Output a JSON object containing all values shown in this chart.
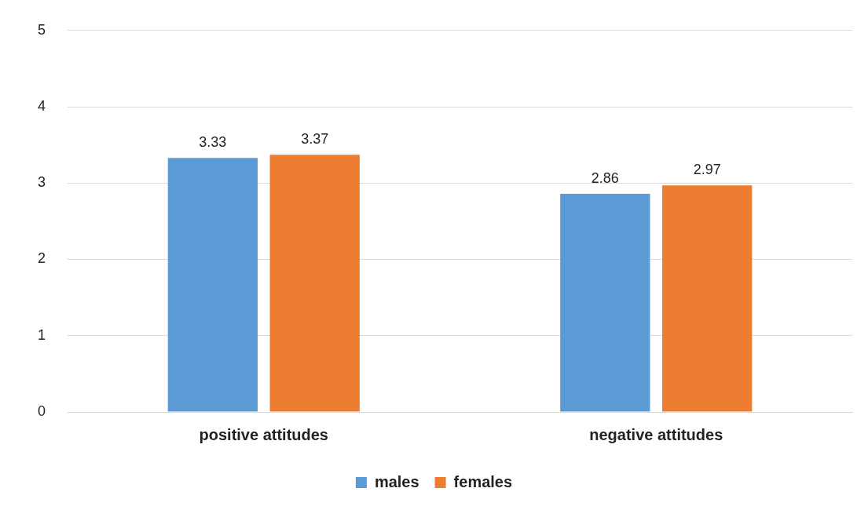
{
  "chart_data": {
    "type": "bar",
    "categories": [
      "positive attitudes",
      "negative attitudes"
    ],
    "series": [
      {
        "name": "males",
        "color": "#5b9bd5",
        "values": [
          3.33,
          2.86
        ]
      },
      {
        "name": "females",
        "color": "#ed7d31",
        "values": [
          3.37,
          2.97
        ]
      }
    ],
    "ylim": [
      0,
      5
    ],
    "yticks": [
      0,
      1,
      2,
      3,
      4,
      5
    ],
    "grid": "y",
    "legend": "bottom",
    "data_labels": true
  }
}
